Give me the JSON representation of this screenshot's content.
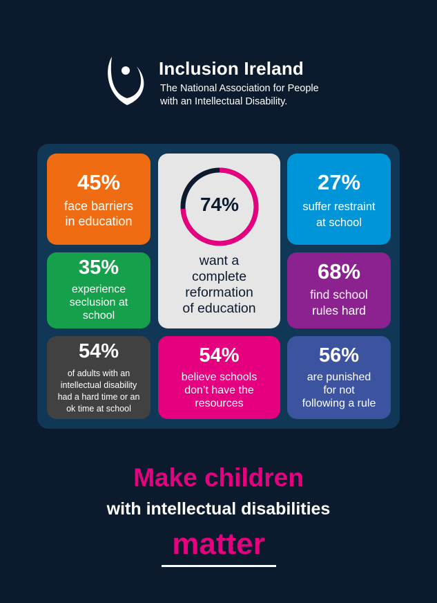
{
  "brand": {
    "name": "Inclusion Ireland",
    "tagline_line1": "The National Association for People",
    "tagline_line2": "with an Intellectual Disability."
  },
  "colors": {
    "background": "#0c1a2e",
    "panel": "#113756",
    "orange": "#ef6c12",
    "green": "#17a04c",
    "grey": "#414141",
    "center": "#e6e6e6",
    "pink": "#e5007f",
    "blue": "#0095d8",
    "purple": "#8c2290",
    "indigo": "#3c53a0"
  },
  "stats": {
    "barriers": {
      "pct": "45%",
      "line1": "face barriers",
      "line2": "in education"
    },
    "seclusion": {
      "pct": "35%",
      "line1": "experience",
      "line2": "seclusion at",
      "line3": "school"
    },
    "hard_time": {
      "pct": "54%",
      "line1": "of adults with an",
      "line2": "intellectual disability",
      "line3": "had a hard time or an",
      "line4": "ok time at school"
    },
    "reformation": {
      "pct": "74%",
      "value": 74,
      "line1": "want a",
      "line2": "complete",
      "line3": "reformation",
      "line4": "of education"
    },
    "resources": {
      "pct": "54%",
      "line1": "believe schools",
      "line2": "don’t have the",
      "line3": "resources"
    },
    "restraint": {
      "pct": "27%",
      "line1": "suffer restraint",
      "line2": "at school"
    },
    "rules_hard": {
      "pct": "68%",
      "line1": "find school",
      "line2": "rules hard"
    },
    "punished": {
      "pct": "56%",
      "line1": "are punished",
      "line2": "for not",
      "line3": "following a rule"
    }
  },
  "slogan": {
    "line1": "Make children",
    "line2": "with intellectual disabilities",
    "line3": "matter"
  }
}
